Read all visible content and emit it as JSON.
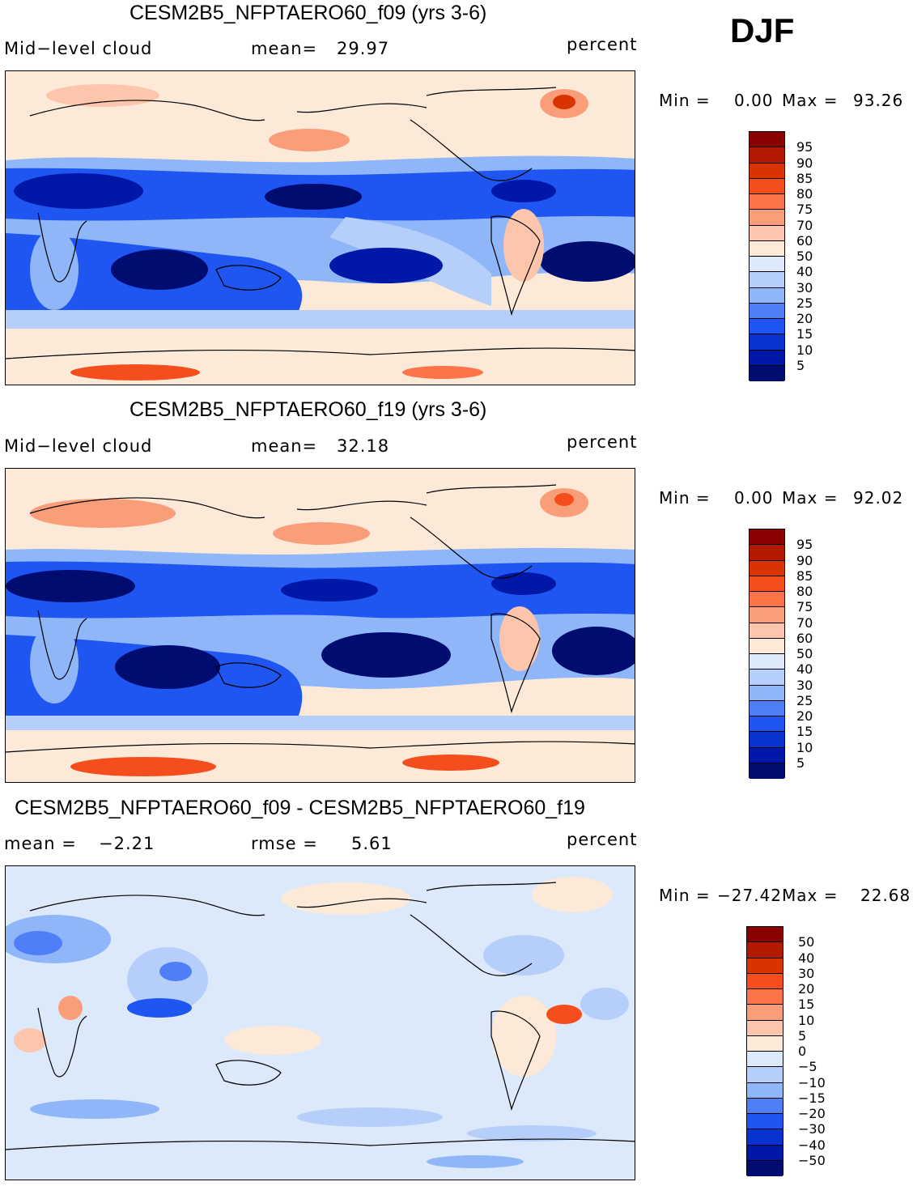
{
  "season": "DJF",
  "panels": [
    {
      "title": "CESM2B5_NFPTAERO60_f09 (yrs 3-6)",
      "left_label": "Mid−level  cloud",
      "mid_label": "mean=",
      "mid_value": "29.97",
      "units": "percent",
      "min_label": "Min  =",
      "min_value": "0.00",
      "max_label": "Max  =",
      "max_value": "93.26",
      "colorbar": {
        "labels": [
          "95",
          "90",
          "85",
          "80",
          "75",
          "70",
          "60",
          "50",
          "40",
          "30",
          "25",
          "20",
          "15",
          "10",
          "5"
        ],
        "colors": [
          "#8b0000",
          "#b11a00",
          "#d93300",
          "#f54d1c",
          "#fb7347",
          "#fa9e7a",
          "#fdc5ac",
          "#fde9d8",
          "#dbe9fb",
          "#b5cffa",
          "#8fb6f9",
          "#4f7ff7",
          "#1f55f0",
          "#0833d1",
          "#0018a8",
          "#000c70"
        ]
      },
      "chart_data": {
        "type": "heatmap",
        "variable": "Mid-level cloud",
        "units": "percent",
        "area_mean": 29.97,
        "min": 0.0,
        "max": 93.26,
        "contour_levels": [
          5,
          10,
          15,
          20,
          25,
          30,
          40,
          50,
          60,
          70,
          75,
          80,
          85,
          90,
          95
        ]
      }
    },
    {
      "title": "CESM2B5_NFPTAERO60_f19 (yrs 3-6)",
      "left_label": "Mid−level  cloud",
      "mid_label": "mean=",
      "mid_value": "32.18",
      "units": "percent",
      "min_label": "Min  =",
      "min_value": "0.00",
      "max_label": "Max  =",
      "max_value": "92.02",
      "colorbar": {
        "labels": [
          "95",
          "90",
          "85",
          "80",
          "75",
          "70",
          "60",
          "50",
          "40",
          "30",
          "25",
          "20",
          "15",
          "10",
          "5"
        ],
        "colors": [
          "#8b0000",
          "#b11a00",
          "#d93300",
          "#f54d1c",
          "#fb7347",
          "#fa9e7a",
          "#fdc5ac",
          "#fde9d8",
          "#dbe9fb",
          "#b5cffa",
          "#8fb6f9",
          "#4f7ff7",
          "#1f55f0",
          "#0833d1",
          "#0018a8",
          "#000c70"
        ]
      },
      "chart_data": {
        "type": "heatmap",
        "variable": "Mid-level cloud",
        "units": "percent",
        "area_mean": 32.18,
        "min": 0.0,
        "max": 92.02,
        "contour_levels": [
          5,
          10,
          15,
          20,
          25,
          30,
          40,
          50,
          60,
          70,
          75,
          80,
          85,
          90,
          95
        ]
      }
    },
    {
      "title": "CESM2B5_NFPTAERO60_f09 - CESM2B5_NFPTAERO60_f19",
      "left_label": "mean  =",
      "left_value": "−2.21",
      "mid_label": "rmse  =",
      "mid_value": "5.61",
      "units": "percent",
      "min_label": "Min  =",
      "min_value": "−27.42",
      "max_label": "Max  =",
      "max_value": "22.68",
      "colorbar": {
        "labels": [
          "50",
          "40",
          "30",
          "20",
          "15",
          "10",
          "5",
          "0",
          "−5",
          "−10",
          "−15",
          "−20",
          "−30",
          "−40",
          "−50"
        ],
        "colors": [
          "#8b0000",
          "#b11a00",
          "#d93300",
          "#f54d1c",
          "#fb7347",
          "#fa9e7a",
          "#fdc5ac",
          "#fde9d8",
          "#dbe9fb",
          "#b5cffa",
          "#8fb6f9",
          "#4f7ff7",
          "#1f55f0",
          "#0833d1",
          "#0018a8",
          "#000c70"
        ]
      },
      "chart_data": {
        "type": "heatmap",
        "variable": "Mid-level cloud difference",
        "units": "percent",
        "area_mean": -2.21,
        "rmse": 5.61,
        "min": -27.42,
        "max": 22.68,
        "contour_levels": [
          -50,
          -40,
          -30,
          -20,
          -15,
          -10,
          -5,
          0,
          5,
          10,
          15,
          20,
          30,
          40,
          50
        ]
      }
    }
  ]
}
